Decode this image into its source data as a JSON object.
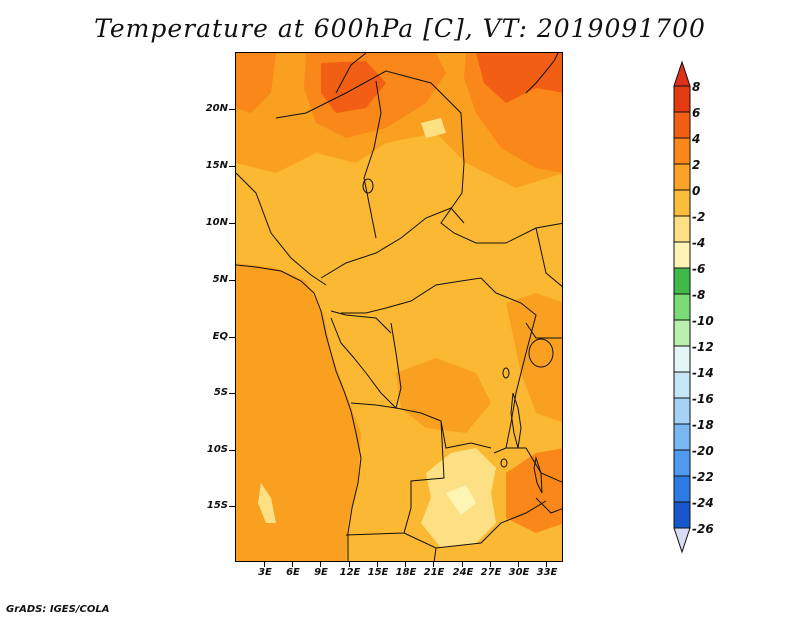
{
  "title": "Temperature at 600hPa [C], VT: 2019091700",
  "lat_labels": [
    "20N",
    "15N",
    "10N",
    "5N",
    "EQ",
    "5S",
    "10S",
    "15S"
  ],
  "lon_labels": [
    "3E",
    "6E",
    "9E",
    "12E",
    "15E",
    "18E",
    "21E",
    "24E",
    "27E",
    "30E",
    "33E"
  ],
  "colorbar": {
    "labels": [
      "8",
      "6",
      "4",
      "2",
      "0",
      "-2",
      "-4",
      "-6",
      "-8",
      "-10",
      "-12",
      "-14",
      "-16",
      "-18",
      "-20",
      "-22",
      "-24",
      "-26"
    ],
    "colors": [
      "#e33a12",
      "#f25f14",
      "#f98719",
      "#fba326",
      "#fbbd3b",
      "#fde083",
      "#fef5b4",
      "#3fb94a",
      "#79dc75",
      "#b9f0b0",
      "#e4f6f6",
      "#c6e6f8",
      "#a6d2f6",
      "#78b8f3",
      "#4f9aee",
      "#2e7ae4",
      "#1658cb",
      "#0e3aa5",
      "#0a1f6e"
    ],
    "top_arrow_color": "#e0301a",
    "bottom_arrow_color": "#d8dcf4"
  },
  "colors": {
    "base": "#fbb833",
    "warm": "#f98719",
    "hot": "#f25f14",
    "cool": "#fde083",
    "coolest": "#fef5b4"
  },
  "credit": "GrADS: IGES/COLA"
}
